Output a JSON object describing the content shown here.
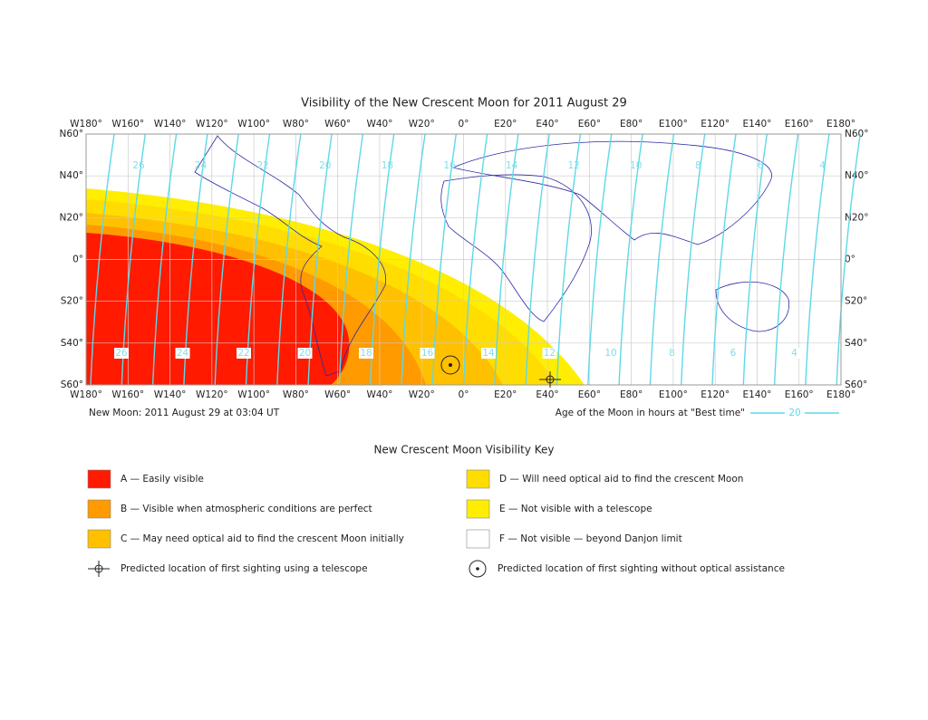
{
  "title": "Visibility of the New Crescent Moon for 2011 August 29",
  "map": {
    "lon_labels": [
      "W180°",
      "W160°",
      "W140°",
      "W120°",
      "W100°",
      "W80°",
      "W60°",
      "W40°",
      "W20°",
      "0°",
      "E20°",
      "E40°",
      "E60°",
      "E80°",
      "E100°",
      "E120°",
      "E140°",
      "E160°",
      "E180°"
    ],
    "lat_labels": [
      "N60°",
      "N40°",
      "N20°",
      "0°",
      "S20°",
      "S40°",
      "S60°"
    ],
    "contour_labels_top": [
      "26",
      "24",
      "22",
      "20",
      "18",
      "16",
      "14",
      "12",
      "10",
      "8",
      "6",
      "4"
    ],
    "contour_labels_bottom": [
      "26",
      "24",
      "22",
      "20",
      "18",
      "16",
      "14",
      "12",
      "10",
      "8",
      "6",
      "4"
    ]
  },
  "footer": {
    "new_moon": "New Moon: 2011 August 29 at 03:04 UT",
    "age_caption": "Age of the Moon in hours at \"Best time\"",
    "age_sample": "20"
  },
  "key": {
    "title": "New Crescent Moon Visibility Key",
    "items": [
      "A — Easily visible",
      "B — Visible when atmospheric conditions are perfect",
      "C — May need optical aid to find the crescent Moon initially",
      "D — Will need optical aid to find the crescent Moon",
      "E — Not visible with a telescope",
      "F — Not visible — beyond Danjon limit"
    ],
    "sightings": [
      "Predicted location of first sighting using a telescope",
      "Predicted location of first sighting without optical assistance"
    ]
  }
}
